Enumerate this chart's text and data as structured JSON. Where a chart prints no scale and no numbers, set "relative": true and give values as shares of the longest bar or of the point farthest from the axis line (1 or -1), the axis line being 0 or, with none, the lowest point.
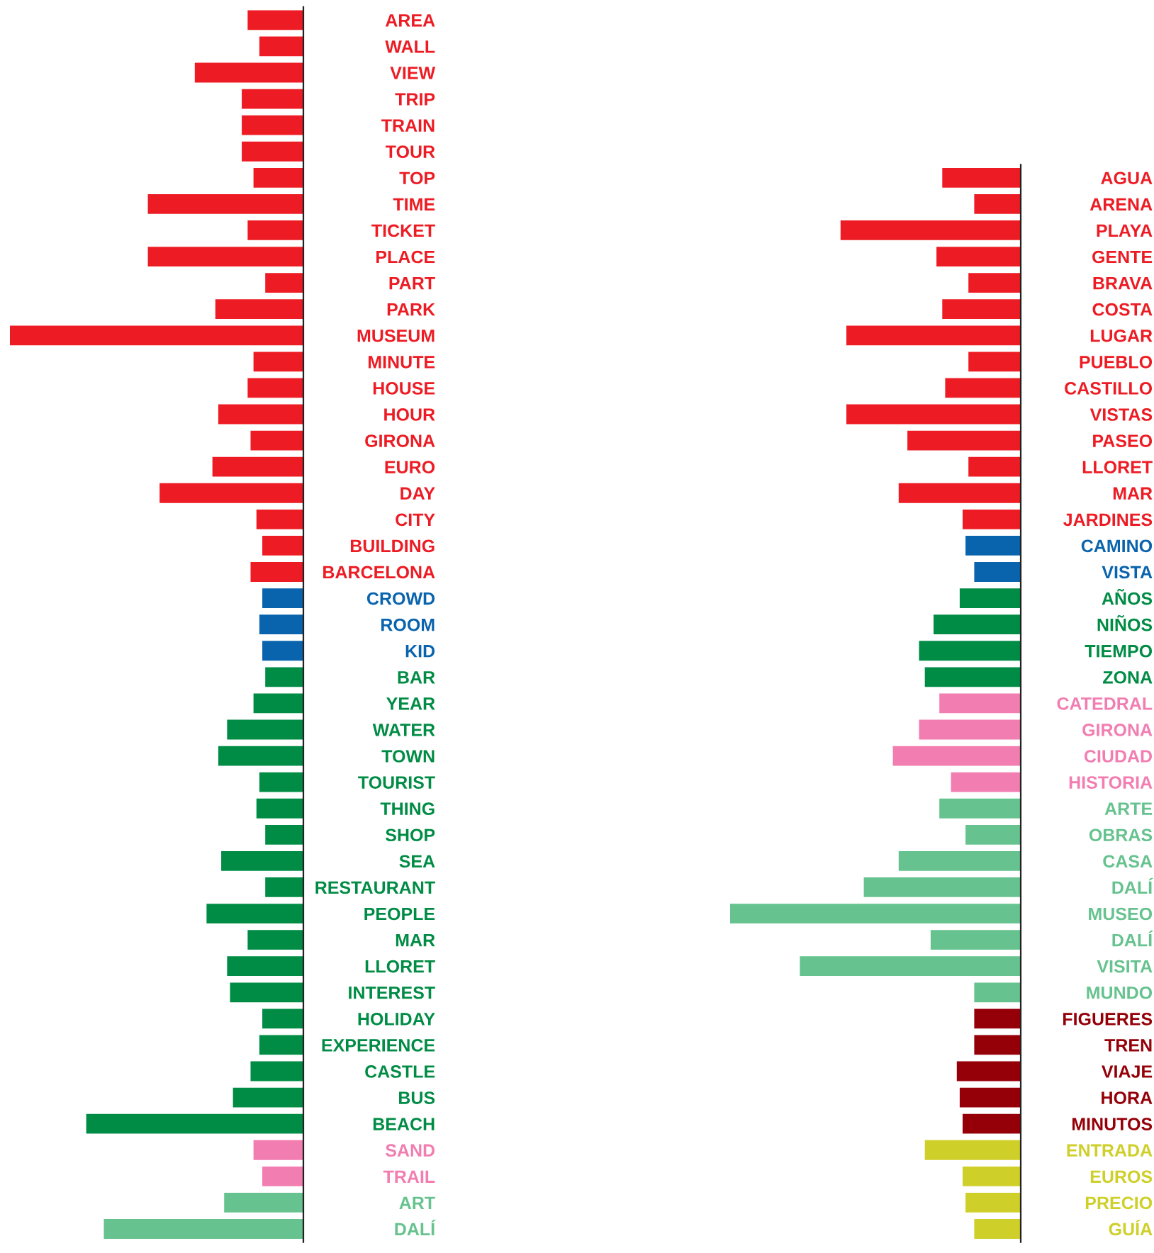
{
  "chart_data": [
    {
      "type": "bar",
      "orientation": "horizontal",
      "relative": true,
      "tick_labels": "y",
      "categories": [
        "AREA",
        "WALL",
        "VIEW",
        "TRIP",
        "TRAIN",
        "TOUR",
        "TOP",
        "TIME",
        "TICKET",
        "PLACE",
        "PART",
        "PARK",
        "MUSEUM",
        "MINUTE",
        "HOUSE",
        "HOUR",
        "GIRONA",
        "EURO",
        "DAY",
        "CITY",
        "BUILDING",
        "BARCELONA",
        "CROWD",
        "ROOM",
        "KID",
        "BAR",
        "YEAR",
        "WATER",
        "TOWN",
        "TOURIST",
        "THING",
        "SHOP",
        "SEA",
        "RESTAURANT",
        "PEOPLE",
        "MAR",
        "LLORET",
        "INTEREST",
        "HOLIDAY",
        "EXPERIENCE",
        "CASTLE",
        "BUS",
        "BEACH",
        "SAND",
        "TRAIL",
        "ART",
        "DALÍ"
      ],
      "values": [
        -0.19,
        -0.15,
        -0.37,
        -0.21,
        -0.21,
        -0.21,
        -0.17,
        -0.53,
        -0.19,
        -0.53,
        -0.13,
        -0.3,
        -1,
        -0.17,
        -0.19,
        -0.29,
        -0.18,
        -0.31,
        -0.49,
        -0.16,
        -0.14,
        -0.18,
        -0.14,
        -0.15,
        -0.14,
        -0.13,
        -0.17,
        -0.26,
        -0.29,
        -0.15,
        -0.16,
        -0.13,
        -0.28,
        -0.13,
        -0.33,
        -0.19,
        -0.26,
        -0.25,
        -0.14,
        -0.15,
        -0.18,
        -0.24,
        -0.74,
        -0.17,
        -0.14,
        -0.27,
        -0.68
      ],
      "colors": [
        "#ed1c24",
        "#ed1c24",
        "#ed1c24",
        "#ed1c24",
        "#ed1c24",
        "#ed1c24",
        "#ed1c24",
        "#ed1c24",
        "#ed1c24",
        "#ed1c24",
        "#ed1c24",
        "#ed1c24",
        "#ed1c24",
        "#ed1c24",
        "#ed1c24",
        "#ed1c24",
        "#ed1c24",
        "#ed1c24",
        "#ed1c24",
        "#ed1c24",
        "#ed1c24",
        "#ed1c24",
        "#0a64ad",
        "#0a64ad",
        "#0a64ad",
        "#008c45",
        "#008c45",
        "#008c45",
        "#008c45",
        "#008c45",
        "#008c45",
        "#008c45",
        "#008c45",
        "#008c45",
        "#008c45",
        "#008c45",
        "#008c45",
        "#008c45",
        "#008c45",
        "#008c45",
        "#008c45",
        "#008c45",
        "#008c45",
        "#f27db1",
        "#f27db1",
        "#66c28e",
        "#66c28e"
      ]
    },
    {
      "type": "bar",
      "orientation": "horizontal",
      "relative": true,
      "tick_labels": "y",
      "categories": [
        "AGUA",
        "ARENA",
        "PLAYA",
        "GENTE",
        "BRAVA",
        "COSTA",
        "LUGAR",
        "PUEBLO",
        "CASTILLO",
        "VISTAS",
        "PASEO",
        "LLORET",
        "MAR",
        "JARDINES",
        "CAMINO",
        "VISTA",
        "AÑOS",
        "NIÑOS",
        "TIEMPO",
        "ZONA",
        "CATEDRAL",
        "GIRONA",
        "CIUDAD",
        "HISTORIA",
        "ARTE",
        "OBRAS",
        "CASA",
        "DALÍ",
        "MUSEO",
        "DALÍ",
        "VISITA",
        "MUNDO",
        "FIGUERES",
        "TREN",
        "VIAJE",
        "HORA",
        "MINUTOS",
        "ENTRADA",
        "EUROS",
        "PRECIO",
        "GUÍA"
      ],
      "values": [
        -0.27,
        -0.16,
        -0.62,
        -0.29,
        -0.18,
        -0.27,
        -0.6,
        -0.18,
        -0.26,
        -0.6,
        -0.39,
        -0.18,
        -0.42,
        -0.2,
        -0.19,
        -0.16,
        -0.21,
        -0.3,
        -0.35,
        -0.33,
        -0.28,
        -0.35,
        -0.44,
        -0.24,
        -0.28,
        -0.19,
        -0.42,
        -0.54,
        -1,
        -0.31,
        -0.76,
        -0.16,
        -0.16,
        -0.16,
        -0.22,
        -0.21,
        -0.2,
        -0.33,
        -0.2,
        -0.19,
        -0.16
      ],
      "colors": [
        "#ed1c24",
        "#ed1c24",
        "#ed1c24",
        "#ed1c24",
        "#ed1c24",
        "#ed1c24",
        "#ed1c24",
        "#ed1c24",
        "#ed1c24",
        "#ed1c24",
        "#ed1c24",
        "#ed1c24",
        "#ed1c24",
        "#ed1c24",
        "#0a64ad",
        "#0a64ad",
        "#008c45",
        "#008c45",
        "#008c45",
        "#008c45",
        "#f27db1",
        "#f27db1",
        "#f27db1",
        "#f27db1",
        "#66c28e",
        "#66c28e",
        "#66c28e",
        "#66c28e",
        "#66c28e",
        "#66c28e",
        "#66c28e",
        "#66c28e",
        "#950008",
        "#950008",
        "#950008",
        "#950008",
        "#950008",
        "#cfcf2a",
        "#cfcf2a",
        "#cfcf2a",
        "#cfcf2a"
      ]
    }
  ]
}
